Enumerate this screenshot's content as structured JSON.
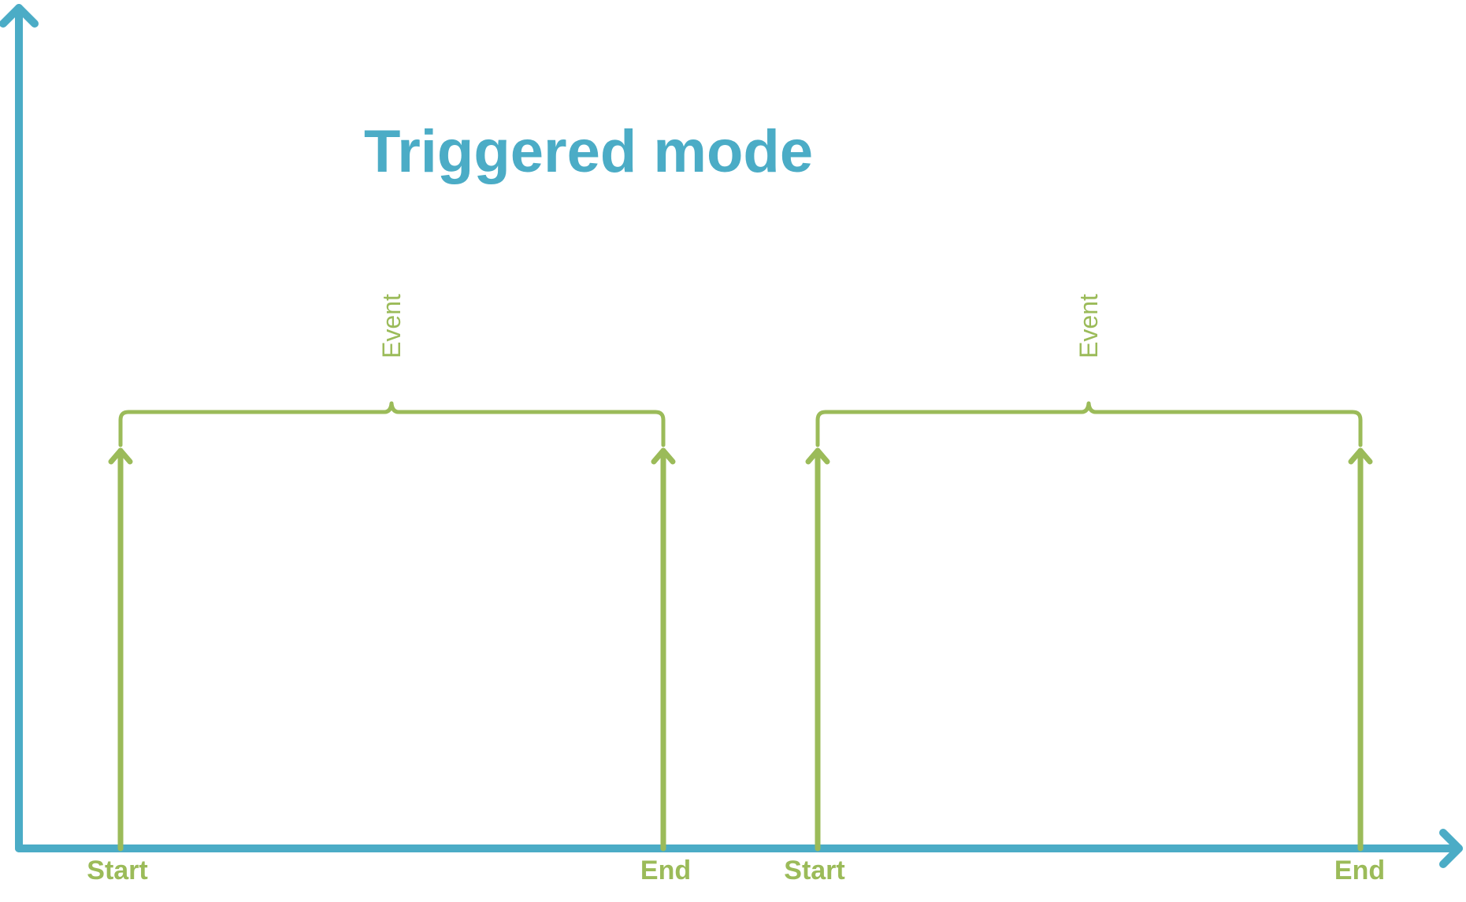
{
  "title": "Triggered mode",
  "colors": {
    "axis": "#4BACC6",
    "event": "#9BBB59",
    "title": "#4BACC6"
  },
  "events": [
    {
      "label": "Event",
      "start_label": "Start",
      "end_label": "End"
    },
    {
      "label": "Event",
      "start_label": "Start",
      "end_label": "End"
    }
  ]
}
